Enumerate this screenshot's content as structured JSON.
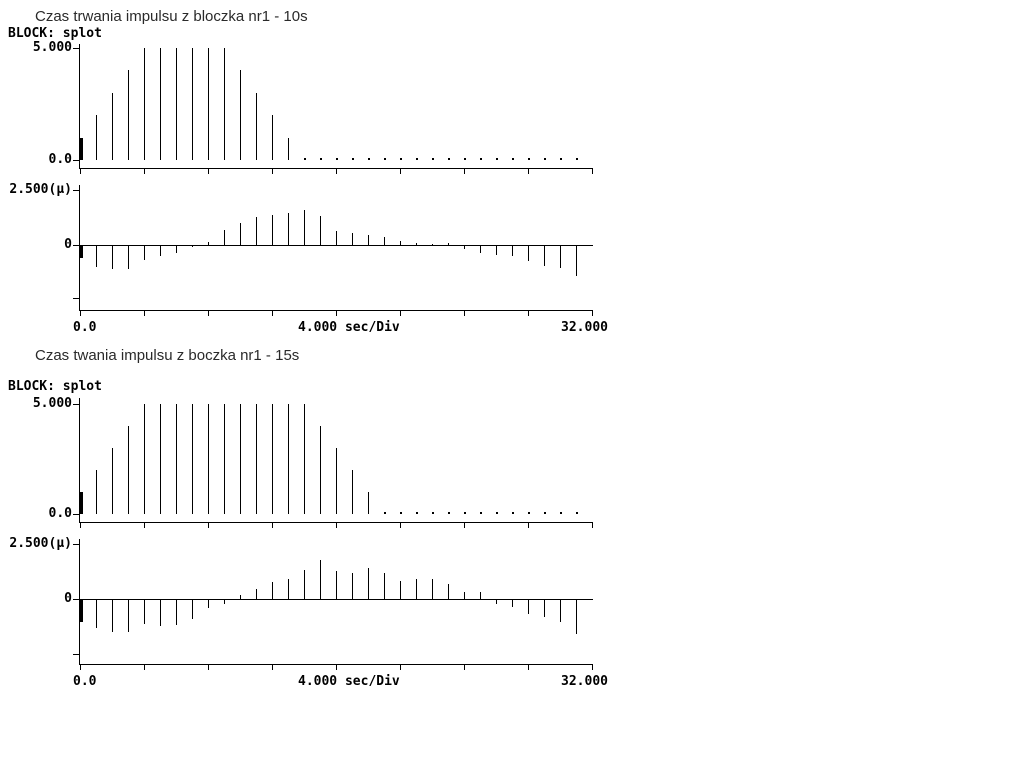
{
  "background": "#ffffff",
  "ink_color": "#000000",
  "title_color": "#2a2a2a",
  "blocks": [
    {
      "title": "Czas trwania impulsu z bloczka nr1 - 10s",
      "block_label": "BLOCK: splot",
      "upper": {
        "y_max_label": "5.000",
        "y_zero_label": "0.0"
      },
      "lower": {
        "y_max_label": "2.500(μ)",
        "y_zero_label": "0"
      },
      "x_axis": {
        "left_label": "0.0",
        "scale_label": "4.000 sec/Div",
        "right_label": "32.000"
      }
    },
    {
      "title": "Czas twania impulsu z boczka nr1 - 15s",
      "block_label": "BLOCK: splot",
      "upper": {
        "y_max_label": "5.000",
        "y_zero_label": "0.0"
      },
      "lower": {
        "y_max_label": "2.500(μ)",
        "y_zero_label": "0"
      },
      "x_axis": {
        "left_label": "0.0",
        "scale_label": "4.000 sec/Div",
        "right_label": "32.000"
      }
    }
  ],
  "chart_data": [
    {
      "type": "stem",
      "title": "Czas trwania impulsu z bloczka nr1 - 10s",
      "block": "BLOCK: splot",
      "x_start_sec": 0,
      "x_step_sec": 1,
      "x_range_sec": [
        0,
        32
      ],
      "sec_per_div": 4,
      "x_tick_labels": [
        "0.0",
        "4.000 sec/Div",
        "32.000"
      ],
      "subplots": [
        {
          "name": "upper",
          "ylim": [
            0,
            5
          ],
          "ytick_labels": [
            "5.000",
            "0.0"
          ],
          "values": [
            1,
            2,
            3,
            4,
            5,
            5,
            5,
            5,
            5,
            5,
            4,
            3,
            2,
            1,
            0,
            0,
            0,
            0,
            0,
            0,
            0,
            0,
            0,
            0,
            0,
            0,
            0,
            0,
            0,
            0,
            0,
            0
          ]
        },
        {
          "name": "lower",
          "unit": "μ",
          "ylim": [
            -2.5,
            2.5
          ],
          "ytick_labels": [
            "2.500(μ)",
            "0"
          ],
          "values": [
            -0.55,
            -0.95,
            -1.05,
            -1.05,
            -0.65,
            -0.45,
            -0.3,
            -0.05,
            0.15,
            0.7,
            1.0,
            1.25,
            1.35,
            1.45,
            1.6,
            1.3,
            0.65,
            0.55,
            0.45,
            0.35,
            0.2,
            0.1,
            0.05,
            0.1,
            -0.15,
            -0.3,
            -0.4,
            -0.45,
            -0.7,
            -0.9,
            -1.0,
            -1.35
          ]
        }
      ]
    },
    {
      "type": "stem",
      "title": "Czas twania impulsu z boczka nr1 - 15s",
      "block": "BLOCK: splot",
      "x_start_sec": 0,
      "x_step_sec": 1,
      "x_range_sec": [
        0,
        32
      ],
      "sec_per_div": 4,
      "x_tick_labels": [
        "0.0",
        "4.000 sec/Div",
        "32.000"
      ],
      "subplots": [
        {
          "name": "upper",
          "ylim": [
            0,
            5
          ],
          "ytick_labels": [
            "5.000",
            "0.0"
          ],
          "values": [
            1,
            2,
            3,
            4,
            5,
            5,
            5,
            5,
            5,
            5,
            5,
            5,
            5,
            5,
            5,
            4,
            3,
            2,
            1,
            0,
            0,
            0,
            0,
            0,
            0,
            0,
            0,
            0,
            0,
            0,
            0,
            0
          ]
        },
        {
          "name": "lower",
          "unit": "μ",
          "ylim": [
            -2.5,
            2.5
          ],
          "ytick_labels": [
            "2.500(μ)",
            "0"
          ],
          "values": [
            -1.0,
            -1.25,
            -1.45,
            -1.45,
            -1.1,
            -1.2,
            -1.15,
            -0.85,
            -0.35,
            -0.2,
            0.2,
            0.45,
            0.75,
            0.9,
            1.3,
            1.75,
            1.25,
            1.2,
            1.4,
            1.2,
            0.8,
            0.9,
            0.9,
            0.7,
            0.3,
            0.3,
            -0.2,
            -0.3,
            -0.65,
            -0.75,
            -1.0,
            -1.55
          ]
        }
      ]
    }
  ]
}
